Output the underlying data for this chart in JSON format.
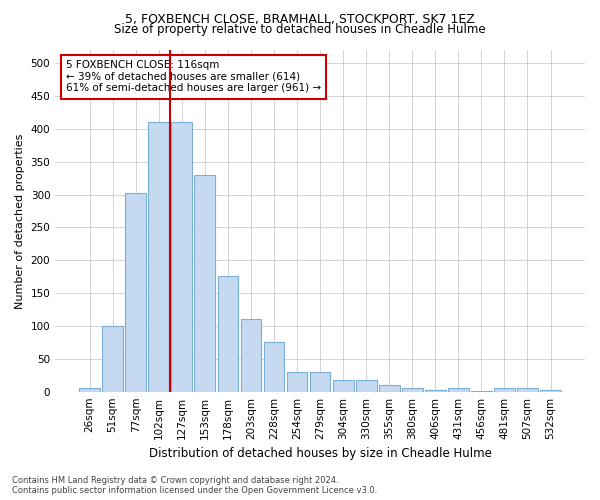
{
  "title": "5, FOXBENCH CLOSE, BRAMHALL, STOCKPORT, SK7 1EZ",
  "subtitle": "Size of property relative to detached houses in Cheadle Hulme",
  "xlabel": "Distribution of detached houses by size in Cheadle Hulme",
  "ylabel": "Number of detached properties",
  "footer_line1": "Contains HM Land Registry data © Crown copyright and database right 2024.",
  "footer_line2": "Contains public sector information licensed under the Open Government Licence v3.0.",
  "bar_labels": [
    "26sqm",
    "51sqm",
    "77sqm",
    "102sqm",
    "127sqm",
    "153sqm",
    "178sqm",
    "203sqm",
    "228sqm",
    "254sqm",
    "279sqm",
    "304sqm",
    "330sqm",
    "355sqm",
    "380sqm",
    "406sqm",
    "431sqm",
    "456sqm",
    "481sqm",
    "507sqm",
    "532sqm"
  ],
  "bar_values": [
    5,
    100,
    302,
    411,
    411,
    330,
    176,
    111,
    75,
    30,
    30,
    18,
    18,
    10,
    6,
    3,
    6,
    1,
    6,
    5,
    3
  ],
  "bar_color": "#c5d9f0",
  "bar_edgecolor": "#7bafd4",
  "vline_x": 3.5,
  "vline_color": "#cc0000",
  "annotation_title": "5 FOXBENCH CLOSE: 116sqm",
  "annotation_line1": "← 39% of detached houses are smaller (614)",
  "annotation_line2": "61% of semi-detached houses are larger (961) →",
  "annotation_box_edgecolor": "#cc0000",
  "ylim": [
    0,
    520
  ],
  "yticks": [
    0,
    50,
    100,
    150,
    200,
    250,
    300,
    350,
    400,
    450,
    500
  ],
  "title_fontsize": 9,
  "subtitle_fontsize": 8.5,
  "ylabel_fontsize": 8,
  "xlabel_fontsize": 8.5,
  "tick_fontsize": 7.5,
  "footer_fontsize": 6
}
